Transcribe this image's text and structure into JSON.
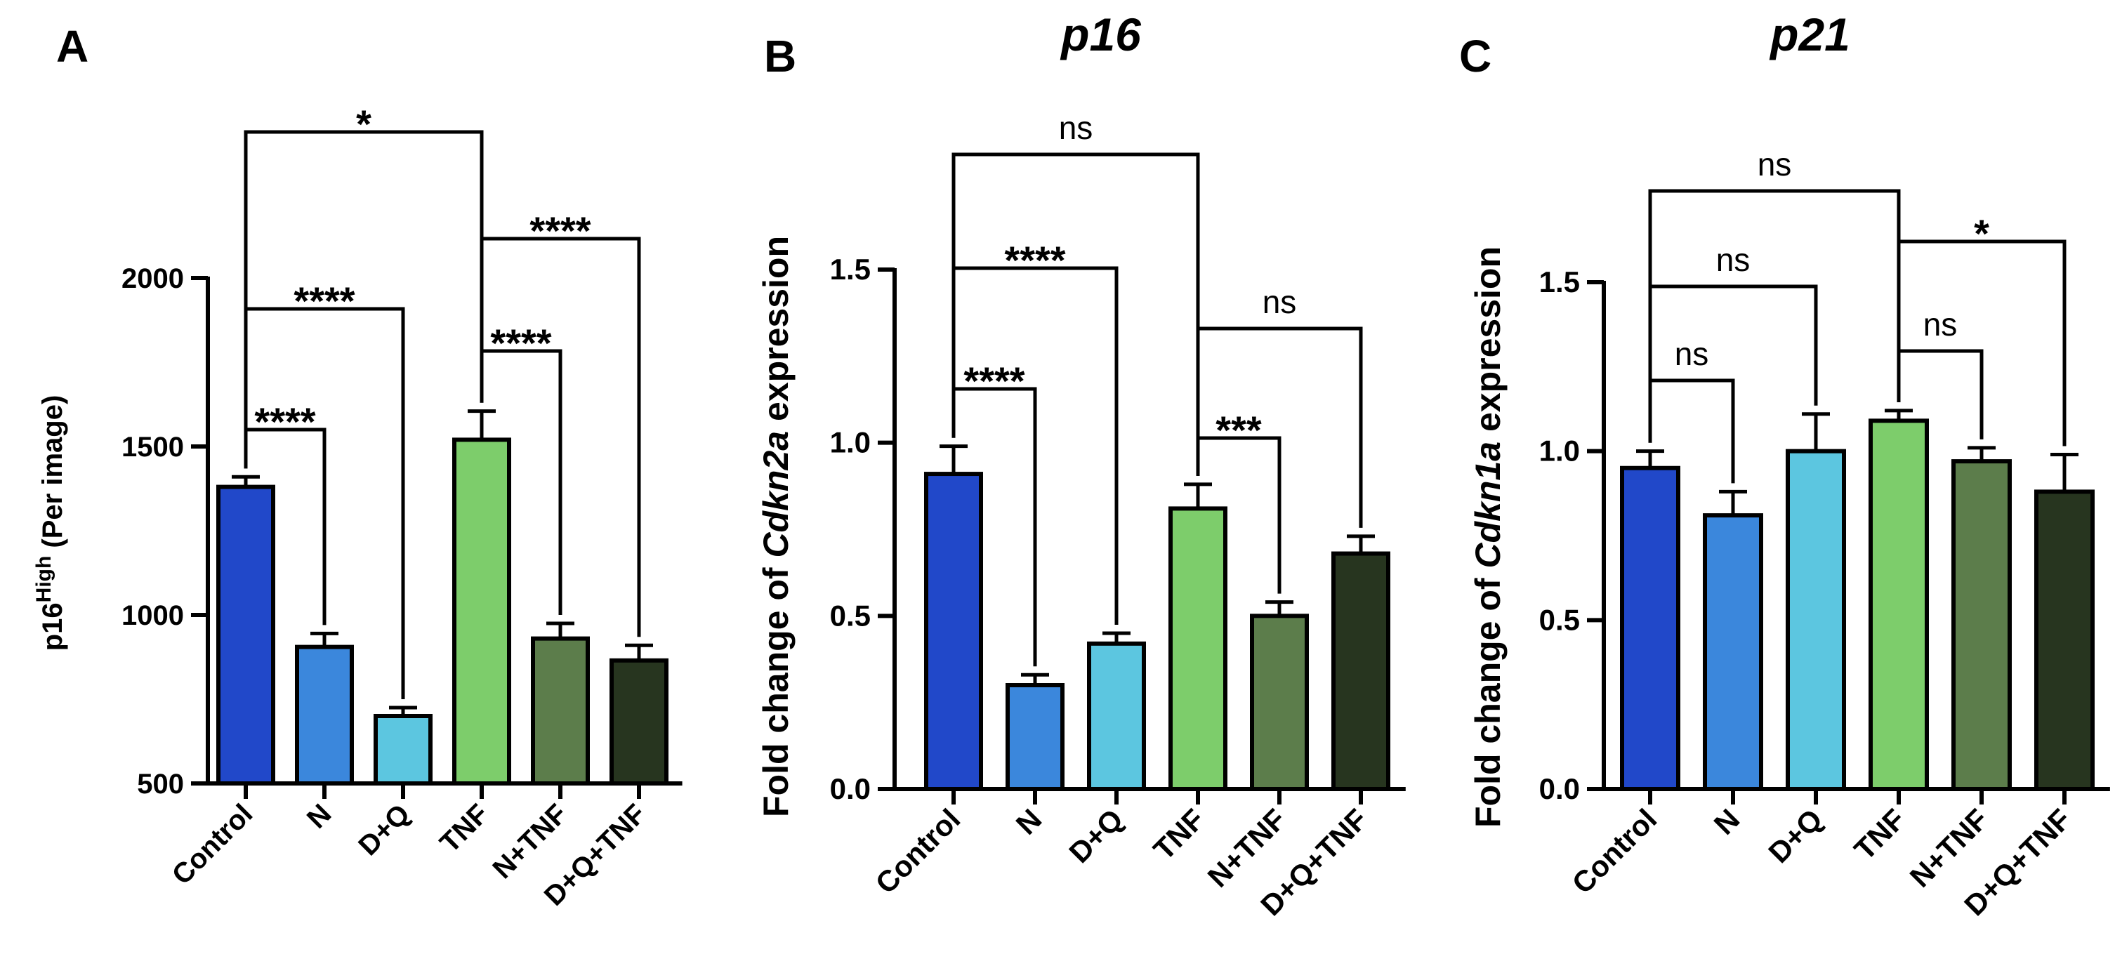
{
  "colors": {
    "Control": "#2148c9",
    "N": "#3b87dc",
    "D+Q": "#5cc6e0",
    "TNF": "#7dcd6b",
    "N+TNF": "#5c7d4b",
    "D+Q+TNF": "#27351f",
    "axis": "#000000"
  },
  "chart_data": [
    {
      "type": "bar",
      "panel": "A",
      "title": "",
      "ylabel_main": "p16",
      "ylabel_sup": "High",
      "ylabel_tail": " (Per image)",
      "categories": [
        "Control",
        "N",
        "D+Q",
        "TNF",
        "N+TNF",
        "D+Q+TNF"
      ],
      "values": [
        1380,
        905,
        700,
        1520,
        930,
        865
      ],
      "errors": [
        30,
        40,
        25,
        85,
        45,
        45
      ],
      "ylim": [
        500,
        2000
      ],
      "yticks": [
        500,
        1000,
        1500,
        2000
      ],
      "ytick_labels": [
        "500",
        "1000",
        "1500",
        "2000"
      ],
      "brackets": [
        {
          "from": 0,
          "to": 3,
          "label": "*"
        },
        {
          "from": 3,
          "to": 5,
          "label": "****"
        },
        {
          "from": 0,
          "to": 2,
          "label": "****"
        },
        {
          "from": 3,
          "to": 4,
          "label": "****"
        },
        {
          "from": 0,
          "to": 1,
          "label": "****"
        }
      ]
    },
    {
      "type": "bar",
      "panel": "B",
      "title": "p16",
      "ylabel_pre": "Fold change of ",
      "ylabel_gene": "Cdkn2a",
      "ylabel_post": " expression",
      "categories": [
        "Control",
        "N",
        "D+Q",
        "TNF",
        "N+TNF",
        "D+Q+TNF"
      ],
      "values": [
        0.91,
        0.3,
        0.42,
        0.81,
        0.5,
        0.68
      ],
      "errors": [
        0.08,
        0.03,
        0.03,
        0.07,
        0.04,
        0.05
      ],
      "ylim": [
        0,
        1.5
      ],
      "yticks": [
        0,
        0.5,
        1.0,
        1.5
      ],
      "ytick_labels": [
        "0.0",
        "0.5",
        "1.0",
        "1.5"
      ],
      "brackets": [
        {
          "from": 0,
          "to": 3,
          "label": "ns"
        },
        {
          "from": 0,
          "to": 2,
          "label": "****"
        },
        {
          "from": 3,
          "to": 5,
          "label": "ns"
        },
        {
          "from": 0,
          "to": 1,
          "label": "****"
        },
        {
          "from": 3,
          "to": 4,
          "label": "***"
        }
      ]
    },
    {
      "type": "bar",
      "panel": "C",
      "title": "p21",
      "ylabel_pre": "Fold change of ",
      "ylabel_gene": "Cdkn1a",
      "ylabel_post": " expression",
      "categories": [
        "Control",
        "N",
        "D+Q",
        "TNF",
        "N+TNF",
        "D+Q+TNF"
      ],
      "values": [
        0.95,
        0.81,
        1.0,
        1.09,
        0.97,
        0.88
      ],
      "errors": [
        0.05,
        0.07,
        0.11,
        0.03,
        0.04,
        0.11
      ],
      "ylim": [
        0,
        1.5
      ],
      "yticks": [
        0,
        0.5,
        1.0,
        1.5
      ],
      "ytick_labels": [
        "0.0",
        "0.5",
        "1.0",
        "1.5"
      ],
      "brackets": [
        {
          "from": 0,
          "to": 3,
          "label": "ns"
        },
        {
          "from": 3,
          "to": 5,
          "label": "*"
        },
        {
          "from": 0,
          "to": 2,
          "label": "ns"
        },
        {
          "from": 3,
          "to": 4,
          "label": "ns"
        },
        {
          "from": 0,
          "to": 1,
          "label": "ns"
        }
      ]
    }
  ]
}
